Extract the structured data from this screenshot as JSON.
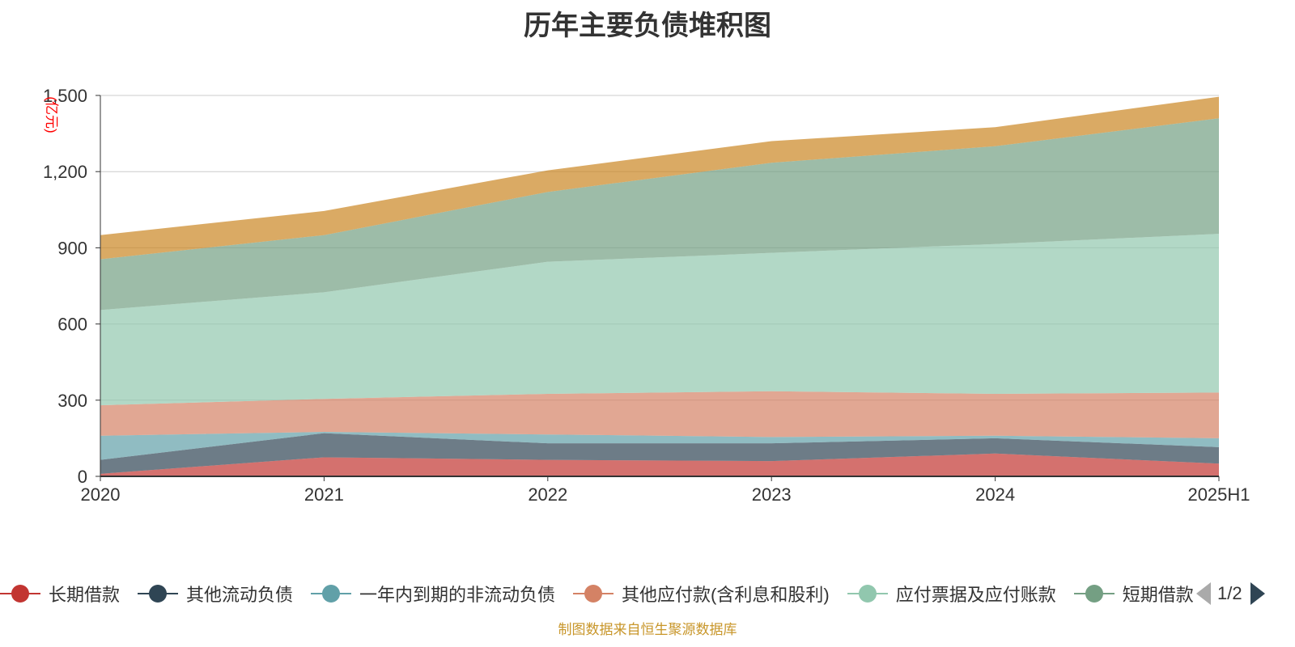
{
  "chart_data": {
    "type": "area",
    "title": "历年主要负债堆积图",
    "ylabel": "(亿元)",
    "xlabel": "",
    "categories": [
      "2020",
      "2021",
      "2022",
      "2023",
      "2024",
      "2025H1"
    ],
    "y_ticks": [
      "0",
      "300",
      "600",
      "900",
      "1,200",
      "1,500"
    ],
    "ylim": [
      0,
      1500
    ],
    "stacked": true,
    "grid": true,
    "legend_position": "bottom",
    "series": [
      {
        "name": "长期借款",
        "color": "#c23531",
        "values": [
          10,
          75,
          65,
          60,
          90,
          50
        ]
      },
      {
        "name": "其他流动负债",
        "color": "#2f4554",
        "values": [
          55,
          95,
          65,
          70,
          60,
          65
        ]
      },
      {
        "name": "一年内到期的非流动负债",
        "color": "#61a0a8",
        "values": [
          95,
          5,
          35,
          25,
          10,
          35
        ]
      },
      {
        "name": "其他应付款(含利息和股利)",
        "color": "#d48265",
        "values": [
          120,
          130,
          160,
          180,
          165,
          180
        ]
      },
      {
        "name": "应付票据及应付账款",
        "color": "#91c7ae",
        "values": [
          375,
          420,
          520,
          545,
          590,
          625
        ]
      },
      {
        "name": "短期借款",
        "color": "#749f83",
        "values": [
          200,
          225,
          275,
          355,
          385,
          455
        ]
      },
      {
        "name": "",
        "color": "#ca8622",
        "values": [
          95,
          95,
          85,
          85,
          75,
          85
        ]
      }
    ]
  },
  "legend": {
    "items": [
      {
        "label": "长期借款",
        "color": "#c23531"
      },
      {
        "label": "其他流动负债",
        "color": "#2f4554"
      },
      {
        "label": "一年内到期的非流动负债",
        "color": "#61a0a8"
      },
      {
        "label": "其他应付款(含利息和股利)",
        "color": "#d48265"
      },
      {
        "label": "应付票据及应付账款",
        "color": "#91c7ae"
      },
      {
        "label": "短期借款",
        "color": "#749f83"
      }
    ],
    "page": "1/2"
  },
  "source_note": "制图数据来自恒生聚源数据库"
}
